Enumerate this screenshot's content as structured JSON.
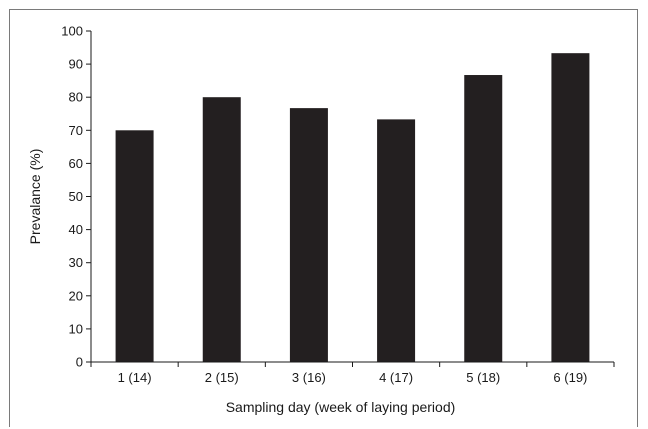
{
  "chart_data": {
    "type": "bar",
    "categories": [
      "1 (14)",
      "2 (15)",
      "3 (16)",
      "4 (17)",
      "5 (18)",
      "6 (19)"
    ],
    "values": [
      70,
      80,
      76.7,
      73.3,
      86.7,
      93.3
    ],
    "title": "",
    "xlabel": "Sampling day (week of laying period)",
    "ylabel": "Prevalance (%)",
    "ylim": [
      0,
      100
    ],
    "yticks": [
      0,
      10,
      20,
      30,
      40,
      50,
      60,
      70,
      80,
      90,
      100
    ],
    "grid": false,
    "legend": "none",
    "bar_color": "#231f20"
  }
}
